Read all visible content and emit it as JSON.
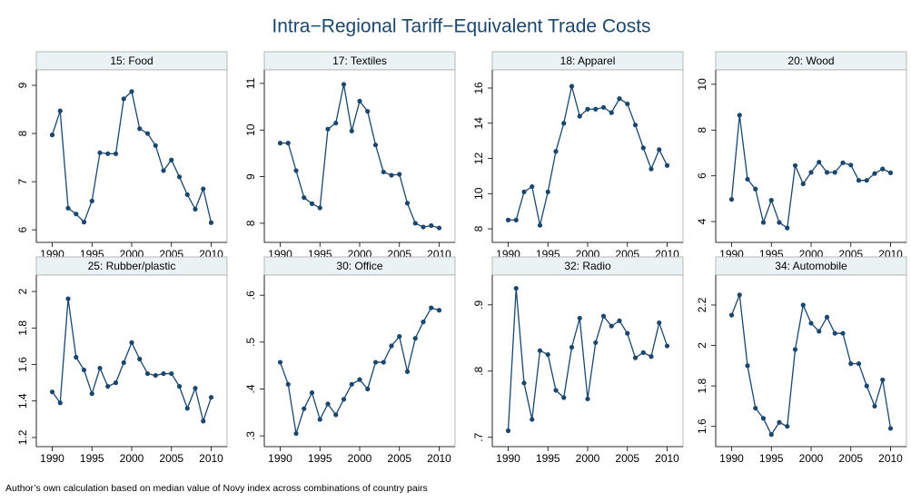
{
  "title": "Intra−Regional Tariff−Equivalent Trade Costs",
  "note": "Author’s own calculation based on median value of Novy index across combinations of country pairs",
  "chart_data": [
    {
      "type": "line",
      "title": "15: Food",
      "color": "#1a476f",
      "x": [
        1990,
        1991,
        1992,
        1993,
        1994,
        1995,
        1996,
        1997,
        1998,
        1999,
        2000,
        2001,
        2002,
        2003,
        2004,
        2005,
        2006,
        2007,
        2008,
        2009,
        2010
      ],
      "values": [
        7.97,
        8.47,
        6.45,
        6.33,
        6.16,
        6.6,
        7.6,
        7.58,
        7.58,
        8.72,
        8.87,
        8.1,
        8.0,
        7.75,
        7.23,
        7.45,
        7.1,
        6.73,
        6.43,
        6.85,
        6.15
      ],
      "xlim": [
        1988,
        2012
      ],
      "xticks": [
        1990,
        1995,
        2000,
        2005,
        2010
      ],
      "ylim": [
        5.74,
        9.32
      ],
      "yticks": [
        6,
        7,
        8,
        9
      ]
    },
    {
      "type": "line",
      "title": "17: Textiles",
      "color": "#1a476f",
      "x": [
        1990,
        1991,
        1992,
        1993,
        1994,
        1995,
        1996,
        1997,
        1998,
        1999,
        2000,
        2001,
        2002,
        2003,
        2004,
        2005,
        2006,
        2007,
        2008,
        2009,
        2010
      ],
      "values": [
        9.72,
        9.72,
        9.13,
        8.55,
        8.42,
        8.33,
        10.02,
        10.15,
        10.98,
        9.98,
        10.62,
        10.4,
        9.68,
        9.1,
        9.03,
        9.05,
        8.43,
        8.0,
        7.92,
        7.95,
        7.9
      ],
      "xlim": [
        1988,
        2012
      ],
      "xticks": [
        1990,
        1995,
        2000,
        2005,
        2010
      ],
      "ylim": [
        7.59,
        11.29
      ],
      "yticks": [
        8,
        9,
        10,
        11
      ]
    },
    {
      "type": "line",
      "title": "18: Apparel",
      "color": "#1a476f",
      "x": [
        1990,
        1991,
        1992,
        1993,
        1994,
        1995,
        1996,
        1997,
        1998,
        1999,
        2000,
        2001,
        2002,
        2003,
        2004,
        2005,
        2006,
        2007,
        2008,
        2009,
        2010
      ],
      "values": [
        8.5,
        8.5,
        10.1,
        10.4,
        8.2,
        10.1,
        12.4,
        14.0,
        16.1,
        14.4,
        14.8,
        14.8,
        14.9,
        14.6,
        15.4,
        15.1,
        13.9,
        12.6,
        11.4,
        12.5,
        11.6
      ],
      "xlim": [
        1988,
        2012
      ],
      "xticks": [
        1990,
        1995,
        2000,
        2005,
        2010
      ],
      "ylim": [
        7.23,
        17.03
      ],
      "yticks": [
        8,
        10,
        12,
        14,
        16
      ]
    },
    {
      "type": "line",
      "title": "20: Wood",
      "color": "#1a476f",
      "x": [
        1990,
        1991,
        1992,
        1993,
        1994,
        1995,
        1996,
        1997,
        1998,
        1999,
        2000,
        2001,
        2002,
        2003,
        2004,
        2005,
        2006,
        2007,
        2008,
        2009,
        2010
      ],
      "values": [
        4.97,
        8.65,
        5.85,
        5.42,
        3.96,
        4.93,
        3.96,
        3.72,
        6.45,
        5.65,
        6.15,
        6.6,
        6.15,
        6.15,
        6.57,
        6.47,
        5.8,
        5.8,
        6.1,
        6.3,
        6.13
      ],
      "xlim": [
        1988,
        2012
      ],
      "xticks": [
        1990,
        1995,
        2000,
        2005,
        2010
      ],
      "ylim": [
        3.09,
        10.63
      ],
      "yticks": [
        4,
        6,
        8,
        10
      ]
    },
    {
      "type": "line",
      "title": "25: Rubber/plastic",
      "color": "#1a476f",
      "x": [
        1990,
        1991,
        1992,
        1993,
        1994,
        1995,
        1996,
        1997,
        1998,
        1999,
        2000,
        2001,
        2002,
        2003,
        2004,
        2005,
        2006,
        2007,
        2008,
        2009,
        2010
      ],
      "values": [
        1.45,
        1.39,
        1.96,
        1.64,
        1.57,
        1.44,
        1.58,
        1.48,
        1.5,
        1.61,
        1.72,
        1.63,
        1.55,
        1.54,
        1.55,
        1.55,
        1.48,
        1.36,
        1.47,
        1.29,
        1.42
      ],
      "xlim": [
        1988,
        2012
      ],
      "xticks": [
        1990,
        1995,
        2000,
        2005,
        2010
      ],
      "ylim": [
        1.15,
        2.09
      ],
      "yticks": [
        1.2,
        1.4,
        1.6,
        1.8,
        2
      ]
    },
    {
      "type": "line",
      "title": "30: Office",
      "color": "#1a476f",
      "x": [
        1990,
        1991,
        1992,
        1993,
        1994,
        1995,
        1996,
        1997,
        1998,
        1999,
        2000,
        2001,
        2002,
        2003,
        2004,
        2005,
        2006,
        2007,
        2008,
        2009,
        2010
      ],
      "values": [
        0.457,
        0.41,
        0.305,
        0.358,
        0.392,
        0.335,
        0.368,
        0.345,
        0.378,
        0.41,
        0.42,
        0.4,
        0.457,
        0.457,
        0.492,
        0.512,
        0.437,
        0.508,
        0.543,
        0.573,
        0.568
      ],
      "xlim": [
        1988,
        2012
      ],
      "xticks": [
        1990,
        1995,
        2000,
        2005,
        2010
      ],
      "ylim": [
        0.277,
        0.643
      ],
      "yticks": [
        {
          "value": 0.3,
          "label": ".3"
        },
        {
          "value": 0.4,
          "label": ".4"
        },
        {
          "value": 0.5,
          "label": ".5"
        },
        {
          "value": 0.6,
          "label": ".6"
        }
      ]
    },
    {
      "type": "line",
      "title": "32: Radio",
      "color": "#1a476f",
      "x": [
        1990,
        1991,
        1992,
        1993,
        1994,
        1995,
        1996,
        1997,
        1998,
        1999,
        2000,
        2001,
        2002,
        2003,
        2004,
        2005,
        2006,
        2007,
        2008,
        2009,
        2010
      ],
      "values": [
        0.71,
        0.925,
        0.782,
        0.727,
        0.831,
        0.825,
        0.771,
        0.76,
        0.836,
        0.88,
        0.758,
        0.843,
        0.883,
        0.868,
        0.876,
        0.857,
        0.82,
        0.828,
        0.822,
        0.873,
        0.838
      ],
      "xlim": [
        1988,
        2012
      ],
      "xticks": [
        1990,
        1995,
        2000,
        2005,
        2010
      ],
      "ylim": [
        0.686,
        0.945
      ],
      "yticks": [
        {
          "value": 0.7,
          "label": ".7"
        },
        {
          "value": 0.8,
          "label": ".8"
        },
        {
          "value": 0.9,
          "label": ".9"
        }
      ]
    },
    {
      "type": "line",
      "title": "34: Automobile",
      "color": "#1a476f",
      "x": [
        1990,
        1991,
        1992,
        1993,
        1994,
        1995,
        1996,
        1997,
        1998,
        1999,
        2000,
        2001,
        2002,
        2003,
        2004,
        2005,
        2006,
        2007,
        2008,
        2009,
        2010
      ],
      "values": [
        2.15,
        2.25,
        1.9,
        1.69,
        1.64,
        1.56,
        1.62,
        1.6,
        1.98,
        2.2,
        2.11,
        2.07,
        2.14,
        2.06,
        2.06,
        1.91,
        1.91,
        1.8,
        1.7,
        1.83,
        1.59
      ],
      "xlim": [
        1988,
        2012
      ],
      "xticks": [
        1990,
        1995,
        2000,
        2005,
        2010
      ],
      "ylim": [
        1.5,
        2.348
      ],
      "yticks": [
        1.6,
        1.8,
        2,
        2.2
      ]
    }
  ]
}
